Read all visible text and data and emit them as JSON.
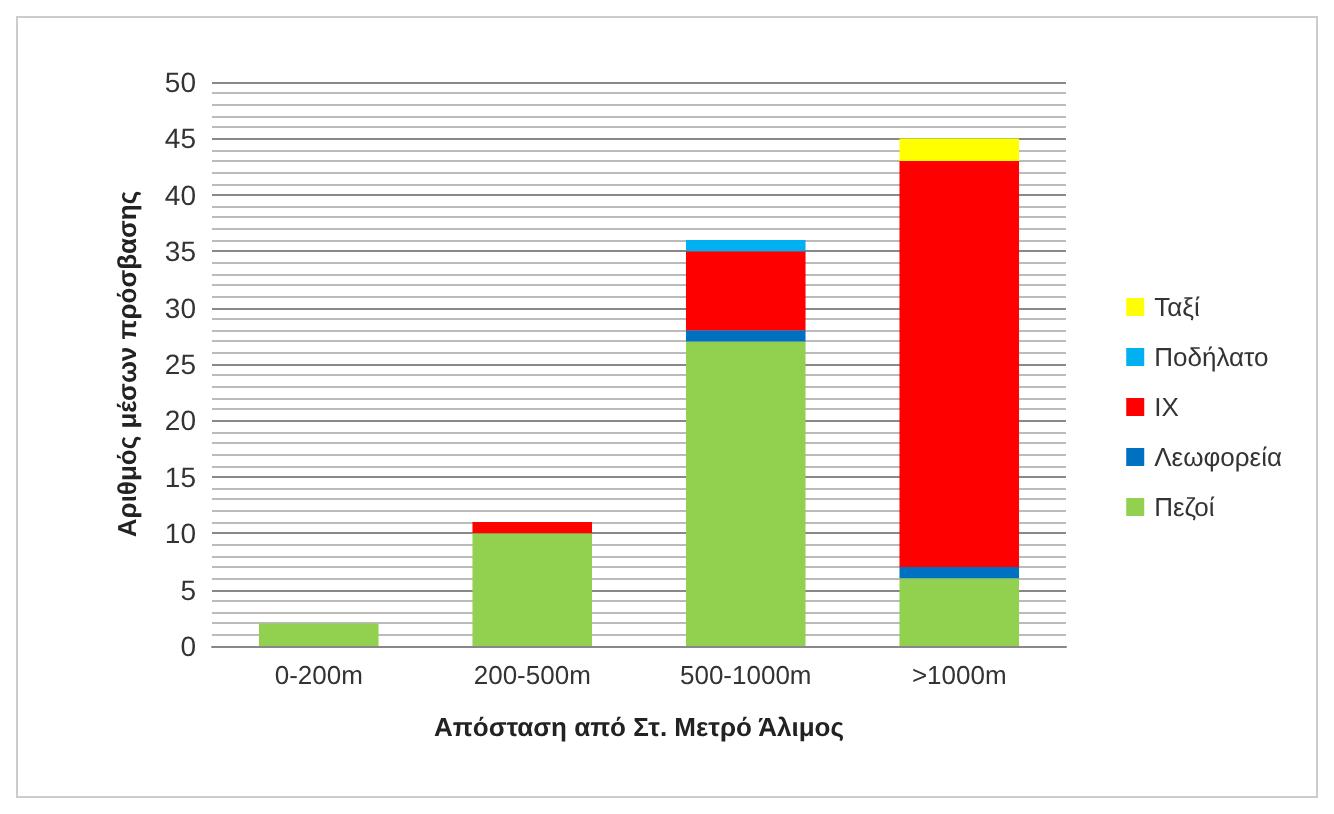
{
  "chart_data": {
    "type": "bar",
    "stacked": true,
    "xlabel": "Απόσταση από Στ. Μετρό Άλιμος",
    "ylabel": "Αριθμός μέσων πρόσβασης",
    "categories": [
      "0-200m",
      "200-500m",
      "500-1000m",
      ">1000m"
    ],
    "series": [
      {
        "name": "Πεζοί",
        "color": "#92d050",
        "values": [
          2,
          10,
          27,
          6
        ]
      },
      {
        "name": "Λεωφορεία",
        "color": "#0070c0",
        "values": [
          0,
          0,
          1,
          1
        ]
      },
      {
        "name": "ΙΧ",
        "color": "#ff0000",
        "values": [
          0,
          1,
          7,
          36
        ]
      },
      {
        "name": "Ποδήλατο",
        "color": "#00b0f0",
        "values": [
          0,
          0,
          1,
          0
        ]
      },
      {
        "name": "Ταξί",
        "color": "#ffff00",
        "values": [
          0,
          0,
          0,
          2
        ]
      }
    ],
    "ylim": [
      0,
      50
    ],
    "yticks": [
      0,
      5,
      10,
      15,
      20,
      25,
      30,
      35,
      40,
      45,
      50
    ],
    "grid": true,
    "legend": "right"
  }
}
